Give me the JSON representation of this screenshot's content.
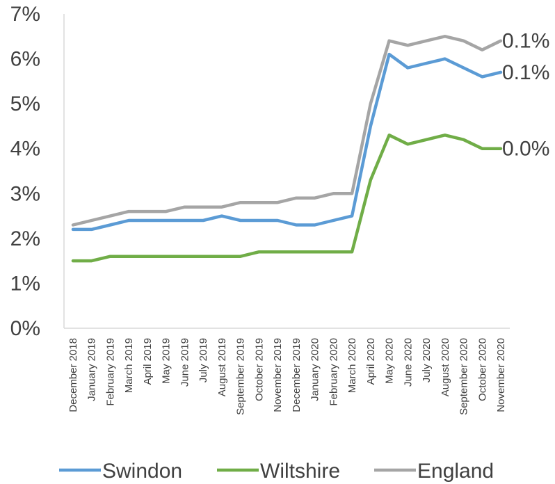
{
  "chart_data": {
    "type": "line",
    "title": "",
    "xlabel": "",
    "ylabel": "",
    "ylim": [
      0,
      7
    ],
    "y_tick_labels": [
      "0%",
      "1%",
      "2%",
      "3%",
      "4%",
      "5%",
      "6%",
      "7%"
    ],
    "grid": false,
    "legend_position": "bottom",
    "categories": [
      "December 2018",
      "January 2019",
      "February 2019",
      "March 2019",
      "April 2019",
      "May 2019",
      "June 2019",
      "July 2019",
      "August 2019",
      "September 2019",
      "October 2019",
      "November 2019",
      "December 2019",
      "January 2020",
      "February 2020",
      "March 2020",
      "April 2020",
      "May 2020",
      "June 2020",
      "July 2020",
      "August 2020",
      "September 2020",
      "October 2020",
      "November 2020"
    ],
    "series": [
      {
        "name": "Swindon",
        "color": "#5b9bd5",
        "values": [
          2.2,
          2.2,
          2.3,
          2.4,
          2.4,
          2.4,
          2.4,
          2.4,
          2.5,
          2.4,
          2.4,
          2.4,
          2.3,
          2.3,
          2.4,
          2.5,
          4.5,
          6.1,
          5.8,
          5.9,
          6.0,
          5.8,
          5.6,
          5.7
        ],
        "end_label": "0.1%"
      },
      {
        "name": "Wiltshire",
        "color": "#70ad47",
        "values": [
          1.5,
          1.5,
          1.6,
          1.6,
          1.6,
          1.6,
          1.6,
          1.6,
          1.6,
          1.6,
          1.7,
          1.7,
          1.7,
          1.7,
          1.7,
          1.7,
          3.3,
          4.3,
          4.1,
          4.2,
          4.3,
          4.2,
          4.0,
          4.0
        ],
        "end_label": "0.0%"
      },
      {
        "name": "England",
        "color": "#a5a5a5",
        "values": [
          2.3,
          2.4,
          2.5,
          2.6,
          2.6,
          2.6,
          2.7,
          2.7,
          2.7,
          2.8,
          2.8,
          2.8,
          2.9,
          2.9,
          3.0,
          3.0,
          5.0,
          6.4,
          6.3,
          6.4,
          6.5,
          6.4,
          6.2,
          6.4
        ],
        "end_label": "0.1%"
      }
    ]
  }
}
